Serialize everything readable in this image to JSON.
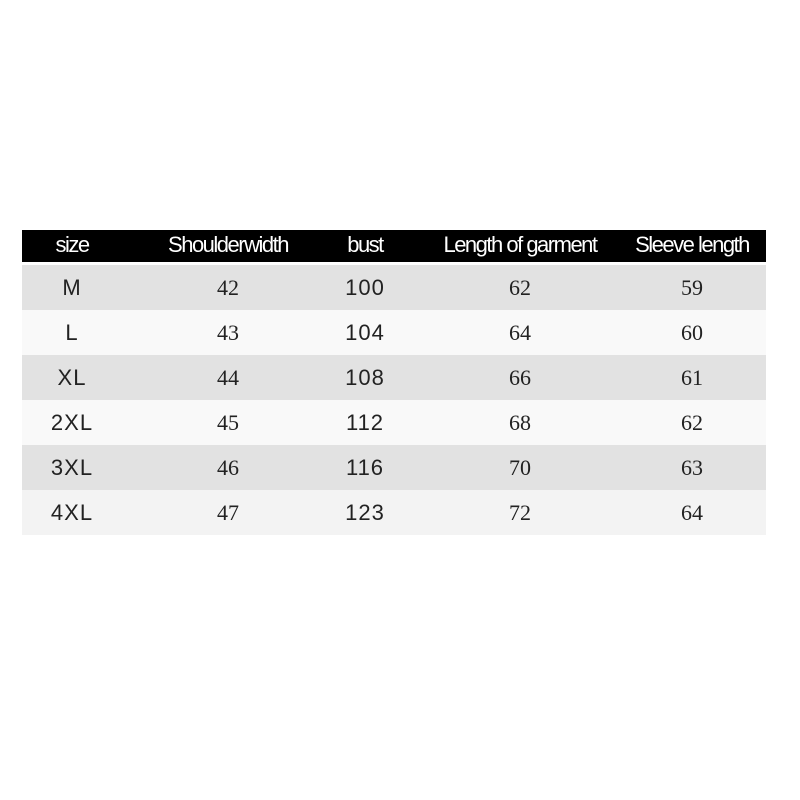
{
  "headers": [
    "size",
    "Shoulderwidth",
    "bust",
    "Length of garment",
    "Sleeve length"
  ],
  "rows": [
    [
      "M",
      "42",
      "100",
      "62",
      "59"
    ],
    [
      "L",
      "43",
      "104",
      "64",
      "60"
    ],
    [
      "XL",
      "44",
      "108",
      "66",
      "61"
    ],
    [
      "2XL",
      "45",
      "112",
      "68",
      "62"
    ],
    [
      "3XL",
      "46",
      "116",
      "70",
      "63"
    ],
    [
      "4XL",
      "47",
      "123",
      "72",
      "64"
    ]
  ],
  "colors": {
    "header_bg": "#000000",
    "header_text": "#ffffff",
    "row_gray": "#e2e2e2",
    "row_white": "#f9f9f9"
  }
}
